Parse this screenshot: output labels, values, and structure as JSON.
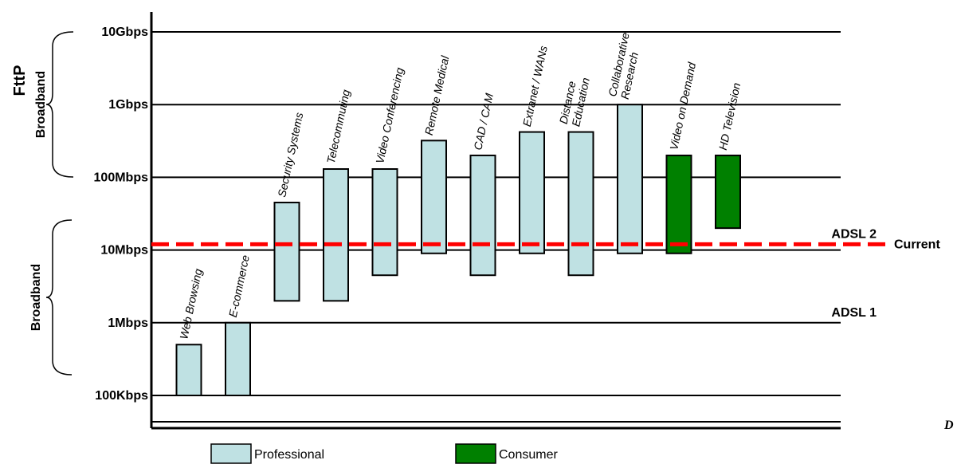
{
  "chart_data": {
    "type": "bar",
    "scale": "log",
    "y_ticks": [
      {
        "label": "100Kbps",
        "value": 0.1
      },
      {
        "label": "1Mbps",
        "value": 1
      },
      {
        "label": "10Mbps",
        "value": 10
      },
      {
        "label": "100Mbps",
        "value": 100
      },
      {
        "label": "1Gbps",
        "value": 1000
      },
      {
        "label": "10Gbps",
        "value": 10000
      }
    ],
    "grid": true,
    "bars": [
      {
        "label": "Web Browsing",
        "low": 0.1,
        "high": 0.5,
        "group": "Professional"
      },
      {
        "label": "E-commerce",
        "low": 0.1,
        "high": 1.0,
        "group": "Professional"
      },
      {
        "label": "Security Systems",
        "low": 2.0,
        "high": 45,
        "group": "Professional"
      },
      {
        "label": "Telecommuting",
        "low": 2.0,
        "high": 130,
        "group": "Professional"
      },
      {
        "label": "Video Conferencing",
        "low": 4.5,
        "high": 130,
        "group": "Professional"
      },
      {
        "label": "Remote Medical",
        "low": 9.0,
        "high": 320,
        "group": "Professional"
      },
      {
        "label": "CAD / CAM",
        "low": 4.5,
        "high": 200,
        "group": "Professional"
      },
      {
        "label": "Extranet / WANs",
        "low": 9.0,
        "high": 420,
        "group": "Professional"
      },
      {
        "label": [
          "Distance",
          "Education"
        ],
        "low": 4.5,
        "high": 420,
        "group": "Professional"
      },
      {
        "label": [
          "Collaborative",
          "Research"
        ],
        "low": 9.0,
        "high": 1000,
        "group": "Professional"
      },
      {
        "label": "Video on Demand",
        "low": 9.0,
        "high": 200,
        "group": "Consumer"
      },
      {
        "label": "HD Television",
        "low": 20,
        "high": 200,
        "group": "Consumer"
      }
    ],
    "reference_lines": [
      {
        "label": "ADSL 2",
        "value": 12,
        "style": "dashed",
        "color": "#ff0000",
        "side_label": "Current"
      }
    ],
    "annotations": [
      {
        "label": "ADSL 1"
      }
    ],
    "brackets": [
      {
        "label": "Broadband",
        "range": [
          0.1,
          10
        ]
      },
      {
        "label": "Broadband",
        "range": [
          100,
          10000
        ],
        "super_label": "FttP"
      }
    ],
    "legend": {
      "placement": "bottom",
      "items": [
        {
          "label": "Professional",
          "color": "#bfe1e3"
        },
        {
          "label": "Consumer",
          "color": "#008000"
        }
      ]
    },
    "corner_text": "D"
  },
  "colors": {
    "professional": "#bfe1e3",
    "consumer": "#008000",
    "reference": "#ff0000",
    "bar_stroke": "#000000",
    "grid": "#000000"
  }
}
